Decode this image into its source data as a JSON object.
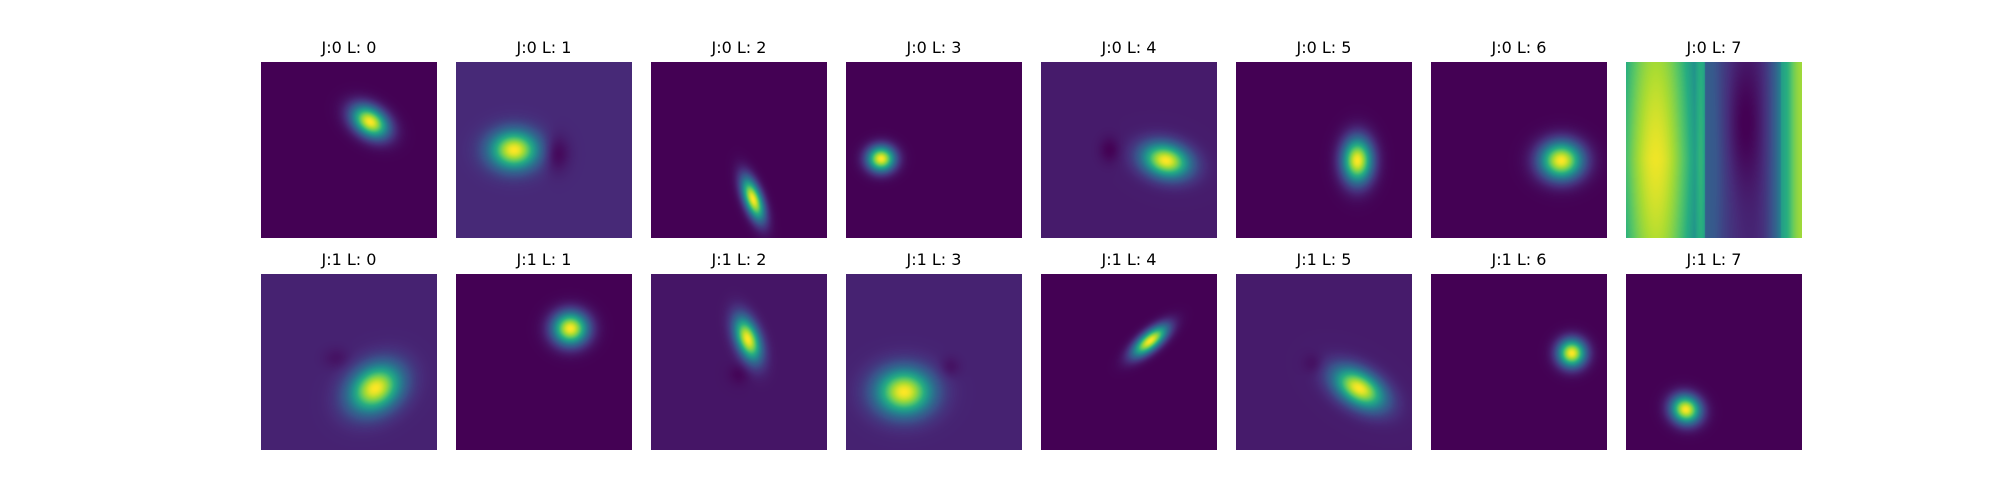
{
  "chart_data": {
    "type": "heatmap",
    "colormap": "viridis",
    "grid": false,
    "axes_visible": false,
    "rows": 2,
    "cols": 8,
    "panels": [
      {
        "title": "J:0 L: 0",
        "background": 0.0,
        "blobs": [
          {
            "cx": 0.62,
            "cy": 0.34,
            "sx": 0.08,
            "sy": 0.055,
            "angle": 35,
            "amp": 1.0
          }
        ]
      },
      {
        "title": "J:0 L: 1",
        "background": 0.12,
        "blobs": [
          {
            "cx": 0.33,
            "cy": 0.5,
            "sx": 0.095,
            "sy": 0.075,
            "angle": 0,
            "amp": 0.88
          },
          {
            "cx": 0.57,
            "cy": 0.52,
            "sx": 0.05,
            "sy": 0.07,
            "angle": 0,
            "amp": -0.12
          }
        ]
      },
      {
        "title": "J:0 L: 2",
        "background": 0.0,
        "blobs": [
          {
            "cx": 0.58,
            "cy": 0.78,
            "sx": 0.09,
            "sy": 0.035,
            "angle": 70,
            "amp": 1.0
          }
        ]
      },
      {
        "title": "J:0 L: 3",
        "background": 0.0,
        "blobs": [
          {
            "cx": 0.2,
            "cy": 0.55,
            "sx": 0.055,
            "sy": 0.05,
            "angle": 0,
            "amp": 1.0
          }
        ]
      },
      {
        "title": "J:0 L: 4",
        "background": 0.08,
        "blobs": [
          {
            "cx": 0.71,
            "cy": 0.56,
            "sx": 0.095,
            "sy": 0.065,
            "angle": 15,
            "amp": 0.92
          },
          {
            "cx": 0.39,
            "cy": 0.5,
            "sx": 0.04,
            "sy": 0.05,
            "angle": 0,
            "amp": -0.08
          }
        ]
      },
      {
        "title": "J:0 L: 5",
        "background": 0.0,
        "blobs": [
          {
            "cx": 0.69,
            "cy": 0.56,
            "sx": 0.06,
            "sy": 0.09,
            "angle": 0,
            "amp": 1.0
          }
        ]
      },
      {
        "title": "J:0 L: 6",
        "background": 0.0,
        "blobs": [
          {
            "cx": 0.74,
            "cy": 0.56,
            "sx": 0.085,
            "sy": 0.075,
            "angle": 0,
            "amp": 1.0
          }
        ]
      },
      {
        "title": "J:0 L: 7",
        "background": 0.0,
        "pattern": "bands",
        "blobs": []
      },
      {
        "title": "J:1 L: 0",
        "background": 0.1,
        "blobs": [
          {
            "cx": 0.65,
            "cy": 0.65,
            "sx": 0.11,
            "sy": 0.085,
            "angle": -35,
            "amp": 0.9
          },
          {
            "cx": 0.43,
            "cy": 0.48,
            "sx": 0.05,
            "sy": 0.04,
            "angle": 0,
            "amp": -0.05
          }
        ]
      },
      {
        "title": "J:1 L: 1",
        "background": 0.0,
        "blobs": [
          {
            "cx": 0.65,
            "cy": 0.31,
            "sx": 0.07,
            "sy": 0.065,
            "angle": 0,
            "amp": 1.0
          }
        ]
      },
      {
        "title": "J:1 L: 2",
        "background": 0.06,
        "blobs": [
          {
            "cx": 0.55,
            "cy": 0.37,
            "sx": 0.09,
            "sy": 0.045,
            "angle": 70,
            "amp": 0.94
          },
          {
            "cx": 0.5,
            "cy": 0.57,
            "sx": 0.04,
            "sy": 0.04,
            "angle": 0,
            "amp": -0.05
          }
        ]
      },
      {
        "title": "J:1 L: 3",
        "background": 0.1,
        "blobs": [
          {
            "cx": 0.33,
            "cy": 0.67,
            "sx": 0.11,
            "sy": 0.09,
            "angle": 0,
            "amp": 0.9
          },
          {
            "cx": 0.59,
            "cy": 0.53,
            "sx": 0.04,
            "sy": 0.04,
            "angle": 0,
            "amp": -0.06
          }
        ]
      },
      {
        "title": "J:1 L: 4",
        "background": 0.0,
        "blobs": [
          {
            "cx": 0.62,
            "cy": 0.38,
            "sx": 0.085,
            "sy": 0.035,
            "angle": -40,
            "amp": 1.0
          }
        ]
      },
      {
        "title": "J:1 L: 5",
        "background": 0.08,
        "blobs": [
          {
            "cx": 0.7,
            "cy": 0.65,
            "sx": 0.11,
            "sy": 0.065,
            "angle": 32,
            "amp": 0.92
          },
          {
            "cx": 0.44,
            "cy": 0.51,
            "sx": 0.04,
            "sy": 0.04,
            "angle": 0,
            "amp": -0.05
          }
        ]
      },
      {
        "title": "J:1 L: 6",
        "background": 0.0,
        "blobs": [
          {
            "cx": 0.8,
            "cy": 0.45,
            "sx": 0.055,
            "sy": 0.055,
            "angle": 0,
            "amp": 1.0
          }
        ]
      },
      {
        "title": "J:1 L: 7",
        "background": 0.0,
        "blobs": [
          {
            "cx": 0.34,
            "cy": 0.77,
            "sx": 0.06,
            "sy": 0.055,
            "angle": 30,
            "amp": 1.0
          }
        ]
      }
    ]
  }
}
